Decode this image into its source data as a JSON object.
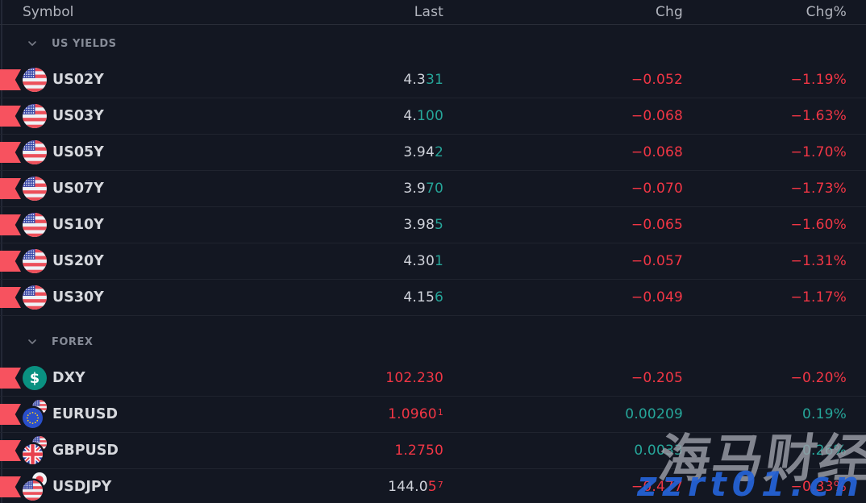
{
  "header": {
    "columns": [
      "Symbol",
      "Last",
      "Chg",
      "Chg%"
    ]
  },
  "sections": [
    {
      "label": "US YIELDS",
      "rows": [
        {
          "symbol": "US02Y",
          "icon": "us-flag-icon",
          "flag": {
            "type": "single",
            "front": "us"
          },
          "last": [
            {
              "t": "4.3",
              "c": "neutral"
            },
            {
              "t": "31",
              "c": "up"
            }
          ],
          "chg": {
            "t": "−0.052",
            "c": "down"
          },
          "chgp": {
            "t": "−1.19%",
            "c": "down"
          }
        },
        {
          "symbol": "US03Y",
          "icon": "us-flag-icon",
          "flag": {
            "type": "single",
            "front": "us"
          },
          "last": [
            {
              "t": "4.",
              "c": "neutral"
            },
            {
              "t": "100",
              "c": "up"
            }
          ],
          "chg": {
            "t": "−0.068",
            "c": "down"
          },
          "chgp": {
            "t": "−1.63%",
            "c": "down"
          }
        },
        {
          "symbol": "US05Y",
          "icon": "us-flag-icon",
          "flag": {
            "type": "single",
            "front": "us"
          },
          "last": [
            {
              "t": "3.94",
              "c": "neutral"
            },
            {
              "t": "2",
              "c": "up"
            }
          ],
          "chg": {
            "t": "−0.068",
            "c": "down"
          },
          "chgp": {
            "t": "−1.70%",
            "c": "down"
          }
        },
        {
          "symbol": "US07Y",
          "icon": "us-flag-icon",
          "flag": {
            "type": "single",
            "front": "us"
          },
          "last": [
            {
              "t": "3.9",
              "c": "neutral"
            },
            {
              "t": "70",
              "c": "up"
            }
          ],
          "chg": {
            "t": "−0.070",
            "c": "down"
          },
          "chgp": {
            "t": "−1.73%",
            "c": "down"
          }
        },
        {
          "symbol": "US10Y",
          "icon": "us-flag-icon",
          "flag": {
            "type": "single",
            "front": "us"
          },
          "last": [
            {
              "t": "3.98",
              "c": "neutral"
            },
            {
              "t": "5",
              "c": "up"
            }
          ],
          "chg": {
            "t": "−0.065",
            "c": "down"
          },
          "chgp": {
            "t": "−1.60%",
            "c": "down"
          }
        },
        {
          "symbol": "US20Y",
          "icon": "us-flag-icon",
          "flag": {
            "type": "single",
            "front": "us"
          },
          "last": [
            {
              "t": "4.30",
              "c": "neutral"
            },
            {
              "t": "1",
              "c": "up"
            }
          ],
          "chg": {
            "t": "−0.057",
            "c": "down"
          },
          "chgp": {
            "t": "−1.31%",
            "c": "down"
          }
        },
        {
          "symbol": "US30Y",
          "icon": "us-flag-icon",
          "flag": {
            "type": "single",
            "front": "us"
          },
          "last": [
            {
              "t": "4.15",
              "c": "neutral"
            },
            {
              "t": "6",
              "c": "up"
            }
          ],
          "chg": {
            "t": "−0.049",
            "c": "down"
          },
          "chgp": {
            "t": "−1.17%",
            "c": "down"
          }
        }
      ]
    },
    {
      "label": "FOREX",
      "rows": [
        {
          "symbol": "DXY",
          "icon": "dollar-icon",
          "flag": {
            "type": "dollar"
          },
          "last": [
            {
              "t": "102.230",
              "c": "down"
            }
          ],
          "chg": {
            "t": "−0.205",
            "c": "down"
          },
          "chgp": {
            "t": "−0.20%",
            "c": "down"
          }
        },
        {
          "symbol": "EURUSD",
          "icon": "eu-us-flag-icon",
          "flag": {
            "type": "pair",
            "front": "eu",
            "back": "us"
          },
          "last": [
            {
              "t": "1.0960",
              "c": "down"
            },
            {
              "t": "1",
              "c": "down",
              "sup": true
            }
          ],
          "chg": {
            "t": "0.00209",
            "c": "up"
          },
          "chgp": {
            "t": "0.19%",
            "c": "up"
          }
        },
        {
          "symbol": "GBPUSD",
          "icon": "gb-us-flag-icon",
          "flag": {
            "type": "pair",
            "front": "gb",
            "back": "us"
          },
          "last": [
            {
              "t": "1.2750",
              "c": "down"
            }
          ],
          "chg": {
            "t": "0.0033",
            "c": "up"
          },
          "chgp": {
            "t": "0.26%",
            "c": "up"
          }
        },
        {
          "symbol": "USDJPY",
          "icon": "us-jp-flag-icon",
          "flag": {
            "type": "pair",
            "front": "us",
            "back": "jp"
          },
          "last": [
            {
              "t": "144.0",
              "c": "neutral"
            },
            {
              "t": "5",
              "c": "down"
            },
            {
              "t": "7",
              "c": "down",
              "sup": true
            }
          ],
          "chg": {
            "t": "−0.477",
            "c": "down"
          },
          "chgp": {
            "t": "−0.33%",
            "c": "down"
          }
        }
      ]
    }
  ],
  "watermark": {
    "line1": "海马财经",
    "line2": "zzrt01.cn"
  },
  "colors": {
    "background": "#131722",
    "up": "#26a69a",
    "down": "#f23645",
    "neutral": "#d1d4dc",
    "ribbon": "#f7525f",
    "section_label": "#868b97",
    "header_text": "#b2b5be",
    "watermark_url": "#2563d9"
  }
}
